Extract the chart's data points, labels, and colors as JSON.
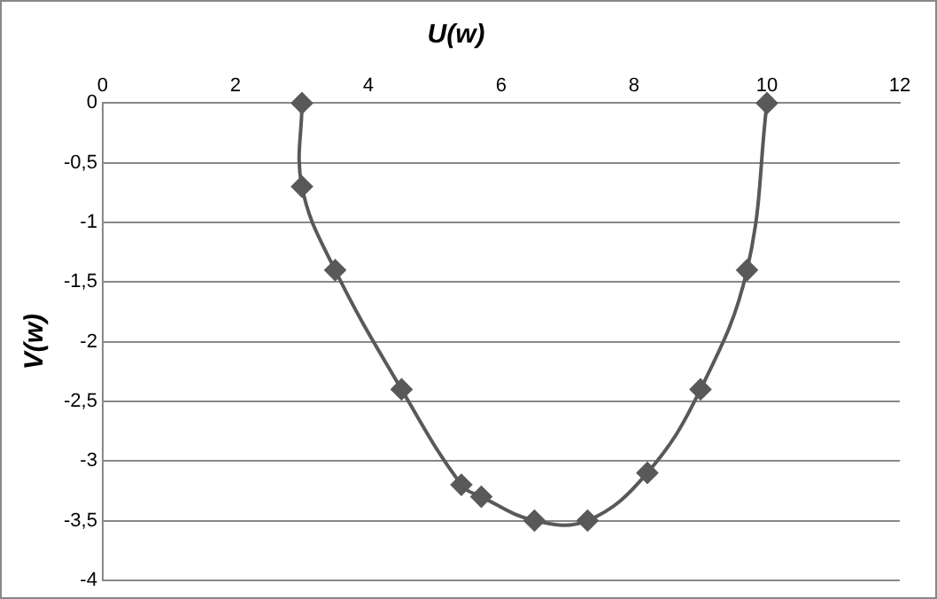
{
  "chart_data": {
    "type": "line",
    "title": "U(w)",
    "ylabel": "V(w)",
    "x": [
      3,
      3,
      3.5,
      4.5,
      5.4,
      5.7,
      6.5,
      7.3,
      8.2,
      9,
      9.7,
      10
    ],
    "series": [
      {
        "color": "#595959",
        "values": [
          0,
          -0.7,
          -1.4,
          -2.4,
          -3.2,
          -3.3,
          -3.5,
          -3.5,
          -3.1,
          -2.4,
          -1.4,
          0
        ]
      }
    ],
    "xlim": [
      0,
      12
    ],
    "xticks": [
      0,
      2,
      4,
      6,
      8,
      10,
      12
    ],
    "ylim": [
      -4,
      0
    ],
    "yticks": [
      {
        "value": -4,
        "label": "-4"
      },
      {
        "value": -3.5,
        "label": "-3,5"
      },
      {
        "value": -3,
        "label": "-3"
      },
      {
        "value": -2.5,
        "label": "-2,5"
      },
      {
        "value": -2,
        "label": "-2"
      },
      {
        "value": -1.5,
        "label": "-1,5"
      },
      {
        "value": -1,
        "label": "-1"
      },
      {
        "value": -0.5,
        "label": "-0,5"
      },
      {
        "value": 0,
        "label": "0"
      }
    ],
    "grid": "y",
    "legend": false,
    "marker": "diamond",
    "line_style": "solid"
  }
}
